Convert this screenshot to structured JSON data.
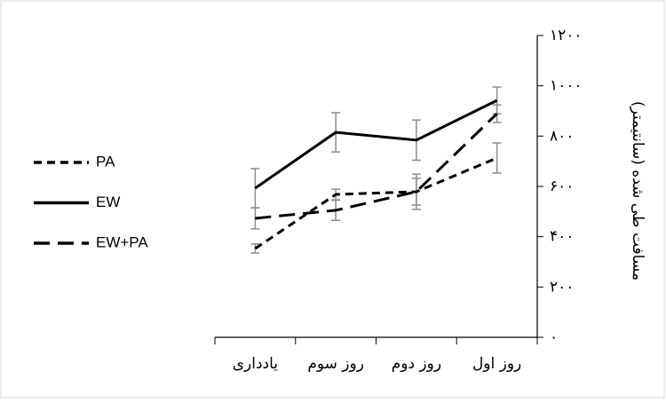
{
  "chart_data": {
    "type": "line",
    "y_label": "مسافت طی شده (سانتیمتر)",
    "categories": [
      "یادداری",
      "روز سوم",
      "روز دوم",
      "روز اول"
    ],
    "series": [
      {
        "name": "PA",
        "color": "#000000",
        "dash": "9,6",
        "values": [
          353,
          568,
          579,
          713
        ],
        "errors": [
          18,
          21,
          70,
          60
        ]
      },
      {
        "name": "EW",
        "color": "#000000",
        "dash": "none",
        "values": [
          593,
          815,
          784,
          942
        ],
        "errors": [
          78,
          78,
          80,
          53
        ]
      },
      {
        "name": "EW+PA",
        "color": "#000000",
        "dash": "18,9",
        "values": [
          473,
          505,
          579,
          889
        ],
        "errors": [
          42,
          40,
          53,
          35
        ]
      }
    ],
    "ylim": [
      0,
      1200
    ],
    "yticks": [
      {
        "value": 0,
        "label": "۰"
      },
      {
        "value": 200,
        "label": "۲۰۰"
      },
      {
        "value": 400,
        "label": "۴۰۰"
      },
      {
        "value": 600,
        "label": "۶۰۰"
      },
      {
        "value": 800,
        "label": "۸۰۰"
      },
      {
        "value": 1000,
        "label": "۱۰۰۰"
      },
      {
        "value": 1200,
        "label": "۱۲۰۰"
      }
    ],
    "error_bar_color": "#8c8c8c"
  }
}
